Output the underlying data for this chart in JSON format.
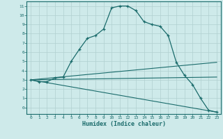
{
  "xlabel": "Humidex (Indice chaleur)",
  "bg_color": "#ceeaea",
  "grid_color": "#b0d0d0",
  "line_color": "#1a6b6b",
  "xlim": [
    -0.5,
    23.5
  ],
  "ylim": [
    -0.7,
    11.5
  ],
  "xticks": [
    0,
    1,
    2,
    3,
    4,
    5,
    6,
    7,
    8,
    9,
    10,
    11,
    12,
    13,
    14,
    15,
    16,
    17,
    18,
    19,
    20,
    21,
    22,
    23
  ],
  "yticks": [
    0,
    1,
    2,
    3,
    4,
    5,
    6,
    7,
    8,
    9,
    10,
    11
  ],
  "curve1_x": [
    0,
    1,
    2,
    3,
    4,
    5,
    6,
    7,
    8,
    9,
    10,
    11,
    12,
    13,
    14,
    15,
    16,
    17,
    18,
    19,
    20,
    21,
    22,
    23
  ],
  "curve1_y": [
    3.0,
    2.8,
    2.8,
    3.2,
    3.3,
    5.0,
    6.3,
    7.5,
    7.8,
    8.5,
    10.8,
    11.0,
    11.0,
    10.5,
    9.3,
    9.0,
    8.8,
    7.8,
    4.9,
    3.5,
    2.5,
    1.0,
    -0.3,
    -0.5
  ],
  "curve2_x": [
    0,
    23
  ],
  "curve2_y": [
    3.0,
    4.9
  ],
  "curve3_x": [
    0,
    23
  ],
  "curve3_y": [
    3.0,
    3.3
  ],
  "curve4_x": [
    0,
    23
  ],
  "curve4_y": [
    3.0,
    -0.5
  ]
}
